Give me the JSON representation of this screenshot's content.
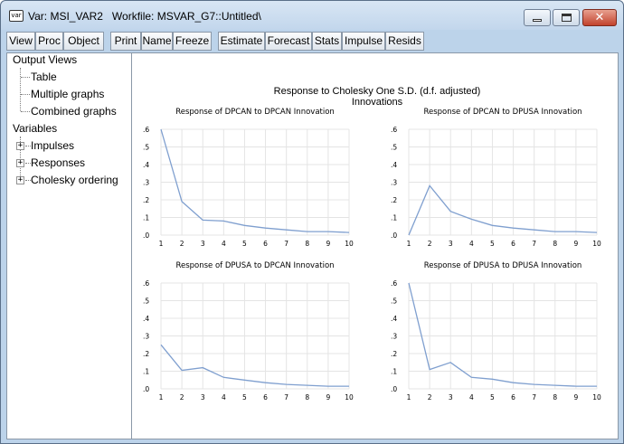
{
  "window": {
    "icon_label": "var",
    "title": "Var: MSI_VAR2   Workfile: MSVAR_G7::Untitled\\"
  },
  "toolbar": {
    "buttons": [
      "View",
      "Proc",
      "Object",
      "Print",
      "Name",
      "Freeze",
      "Estimate",
      "Forecast",
      "Stats",
      "Impulse",
      "Resids"
    ]
  },
  "tree": {
    "output_views": "Output Views",
    "table": "Table",
    "multiple_graphs": "Multiple graphs",
    "combined_graphs": "Combined graphs",
    "variables": "Variables",
    "impulses": "Impulses",
    "responses": "Responses",
    "cholesky": "Cholesky ordering",
    "expander_symbol": "+"
  },
  "graph": {
    "main_title": "Response to Cholesky One S.D. (d.f. adjusted) Innovations"
  },
  "chart_data": [
    {
      "type": "line",
      "title": "Response of DPCAN to DPCAN Innovation",
      "x": [
        1,
        2,
        3,
        4,
        5,
        6,
        7,
        8,
        9,
        10
      ],
      "series": [
        {
          "values": [
            0.6,
            0.19,
            0.085,
            0.08,
            0.055,
            0.04,
            0.03,
            0.02,
            0.02,
            0.015
          ]
        }
      ],
      "ylim": [
        0.0,
        0.6
      ],
      "yticks": [
        ".0",
        ".1",
        ".2",
        ".3",
        ".4",
        ".5",
        ".6"
      ],
      "xticks": [
        "1",
        "2",
        "3",
        "4",
        "5",
        "6",
        "7",
        "8",
        "9",
        "10"
      ],
      "grid": true,
      "color": "#7f9fcf"
    },
    {
      "type": "line",
      "title": "Response of DPCAN to DPUSA Innovation",
      "x": [
        1,
        2,
        3,
        4,
        5,
        6,
        7,
        8,
        9,
        10
      ],
      "series": [
        {
          "values": [
            0.0,
            0.28,
            0.135,
            0.09,
            0.055,
            0.04,
            0.03,
            0.02,
            0.02,
            0.015
          ]
        }
      ],
      "ylim": [
        0.0,
        0.6
      ],
      "yticks": [
        ".0",
        ".1",
        ".2",
        ".3",
        ".4",
        ".5",
        ".6"
      ],
      "xticks": [
        "1",
        "2",
        "3",
        "4",
        "5",
        "6",
        "7",
        "8",
        "9",
        "10"
      ],
      "grid": true,
      "color": "#7f9fcf"
    },
    {
      "type": "line",
      "title": "Response of DPUSA to DPCAN Innovation",
      "x": [
        1,
        2,
        3,
        4,
        5,
        6,
        7,
        8,
        9,
        10
      ],
      "series": [
        {
          "values": [
            0.25,
            0.105,
            0.12,
            0.065,
            0.05,
            0.035,
            0.025,
            0.02,
            0.015,
            0.015
          ]
        }
      ],
      "ylim": [
        0.0,
        0.6
      ],
      "yticks": [
        ".0",
        ".1",
        ".2",
        ".3",
        ".4",
        ".5",
        ".6"
      ],
      "xticks": [
        "1",
        "2",
        "3",
        "4",
        "5",
        "6",
        "7",
        "8",
        "9",
        "10"
      ],
      "grid": true,
      "color": "#7f9fcf"
    },
    {
      "type": "line",
      "title": "Response of DPUSA to DPUSA Innovation",
      "x": [
        1,
        2,
        3,
        4,
        5,
        6,
        7,
        8,
        9,
        10
      ],
      "series": [
        {
          "values": [
            0.6,
            0.11,
            0.15,
            0.065,
            0.055,
            0.035,
            0.025,
            0.02,
            0.015,
            0.015
          ]
        }
      ],
      "ylim": [
        0.0,
        0.6
      ],
      "yticks": [
        ".0",
        ".1",
        ".2",
        ".3",
        ".4",
        ".5",
        ".6"
      ],
      "xticks": [
        "1",
        "2",
        "3",
        "4",
        "5",
        "6",
        "7",
        "8",
        "9",
        "10"
      ],
      "grid": true,
      "color": "#7f9fcf"
    }
  ]
}
